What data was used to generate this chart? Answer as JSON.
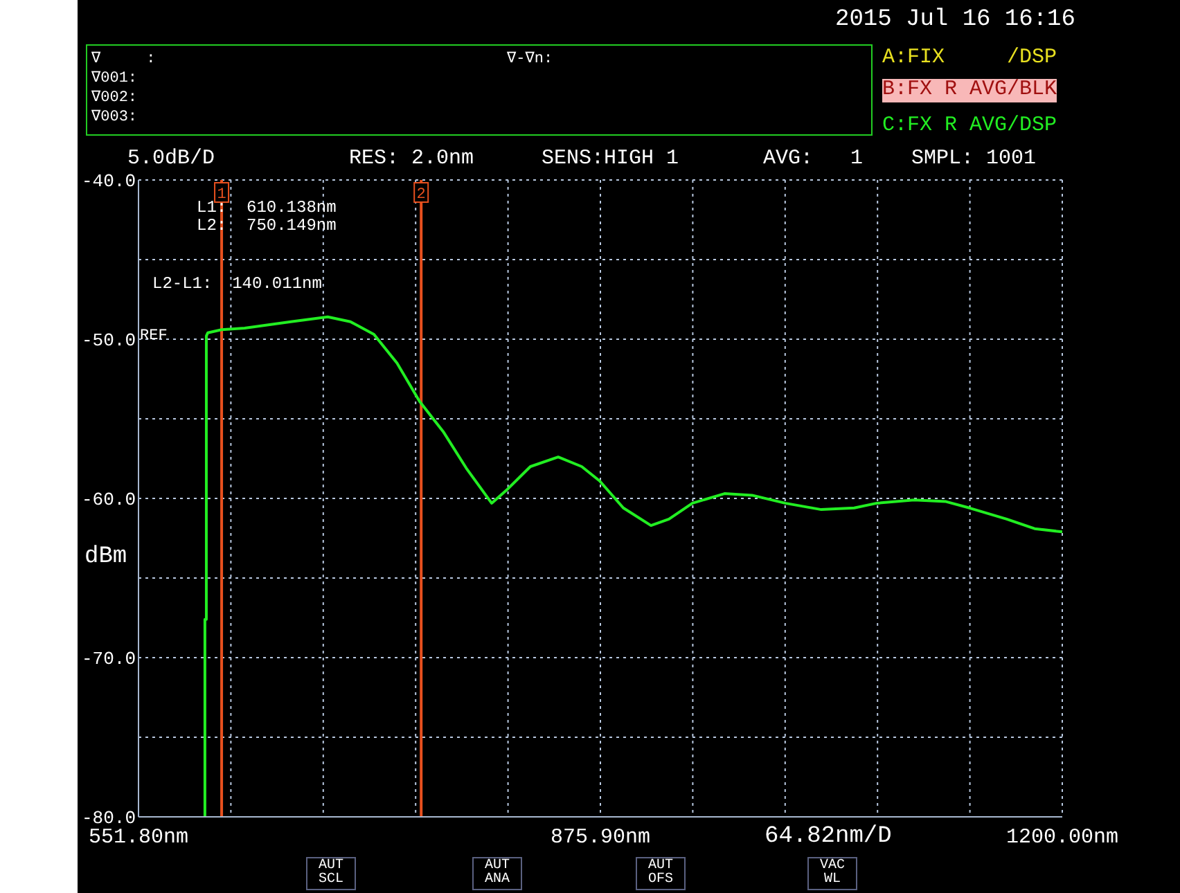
{
  "chart_data": {
    "type": "line",
    "ylabel": "dBm",
    "xlim": [
      551.8,
      1200
    ],
    "ylim": [
      -80,
      -40
    ],
    "xticks": [
      {
        "value": 551.8,
        "label": "551.80nm"
      },
      {
        "value": 616.62,
        "label": null
      },
      {
        "value": 681.44,
        "label": null
      },
      {
        "value": 746.26,
        "label": null
      },
      {
        "value": 811.08,
        "label": null
      },
      {
        "value": 875.9,
        "label": "875.90nm"
      },
      {
        "value": 940.72,
        "label": null
      },
      {
        "value": 1005.54,
        "label": null
      },
      {
        "value": 1070.36,
        "label": null
      },
      {
        "value": 1135.18,
        "label": null
      },
      {
        "value": 1200,
        "label": "1200.00nm"
      }
    ],
    "yticks": [
      {
        "value": -80,
        "label": "-80.0"
      },
      {
        "value": -75,
        "label": null
      },
      {
        "value": -70,
        "label": "-70.0"
      },
      {
        "value": -65,
        "label": null
      },
      {
        "value": -60,
        "label": "-60.0"
      },
      {
        "value": -55,
        "label": null
      },
      {
        "value": -50,
        "label": "-50.0"
      },
      {
        "value": -45,
        "label": null
      },
      {
        "value": -40,
        "label": "-40.0"
      }
    ],
    "grid": true,
    "series": [
      {
        "color": "#22ee22",
        "x": [
          598.4,
          598.4,
          599.4,
          599.4,
          600.4,
          610.1,
          626.3,
          658.7,
          684.6,
          700.5,
          717,
          733.2,
          749,
          765.6,
          781.8,
          799.6,
          811,
          826.8,
          846.3,
          862.8,
          875.4,
          892,
          911.4,
          924,
          940.5,
          963,
          982.3,
          1005.6,
          1030.9,
          1054,
          1069.8,
          1096,
          1118.4,
          1134.9,
          1161,
          1180.6,
          1200
        ],
        "values": [
          -80,
          -67.6,
          -67.6,
          -49.8,
          -49.6,
          -49.4,
          -49.3,
          -48.9,
          -48.6,
          -48.9,
          -49.7,
          -51.5,
          -53.9,
          -55.8,
          -58.1,
          -60.3,
          -59.4,
          -58,
          -57.4,
          -58,
          -58.9,
          -60.6,
          -61.7,
          -61.3,
          -60.3,
          -59.7,
          -59.8,
          -60.3,
          -60.7,
          -60.6,
          -60.3,
          -60.1,
          -60.2,
          -60.6,
          -61.3,
          -61.9,
          -62.1
        ]
      }
    ],
    "ref_lines": [
      {
        "axis": "x",
        "value": 610.138,
        "color": "#e8501e"
      },
      {
        "axis": "x",
        "value": 750.149,
        "color": "#e8501e"
      }
    ],
    "annotations": [
      "2015 Jul 16 16:16",
      "∇     :",
      "∇001:",
      "∇002:",
      "∇003:",
      "∇-∇n:",
      "A:FIX     /DSP",
      "B:FX R AVG/BLK",
      "C:FX R AVG/DSP",
      "5.0dB/D",
      "RES: 2.0nm",
      "SENS:HIGH 1",
      "AVG:   1",
      "SMPL: 1001",
      "L1:  610.138nm",
      "L2:  750.149nm",
      "L2-L1:  140.011nm",
      "REF",
      "64.82nm/D",
      "AUT SCL",
      "AUT ANA",
      "AUT OFS",
      "VAC WL",
      {
        "text": "1",
        "x": 610.138,
        "y": -40
      },
      {
        "text": "2",
        "x": 750.149,
        "y": -40
      }
    ]
  }
}
